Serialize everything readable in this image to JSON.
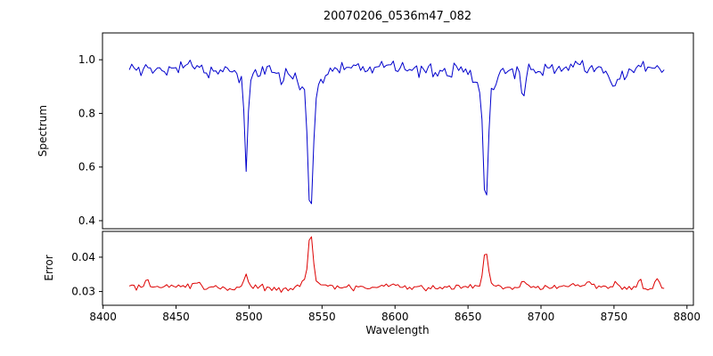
{
  "x_axis": {
    "label": "Wavelength",
    "lim": [
      8399.6,
      8804.4
    ],
    "ticks": [
      8400,
      8450,
      8500,
      8550,
      8600,
      8650,
      8700,
      8750,
      8800
    ],
    "data_range": [
      8418,
      8786
    ],
    "step": 1.6
  },
  "chart_data": [
    {
      "id": "spectrum",
      "type": "line",
      "title": "20070206_0536m47_082",
      "ylabel": "Spectrum",
      "color": "#0000cc",
      "ylim": [
        0.37,
        1.1
      ],
      "yticks": [
        {
          "value": 0.4,
          "label": "0.4"
        },
        {
          "value": 0.6,
          "label": "0.6"
        },
        {
          "value": 0.8,
          "label": "0.8"
        },
        {
          "value": 1.0,
          "label": "1.0"
        }
      ],
      "baseline": 0.963,
      "noise": 0.014,
      "slow_wave": 0.008,
      "fast_wave": 0.006,
      "sign": -1,
      "seed": 19,
      "clamp": [
        0.395,
        1.055
      ],
      "spike_prob": 0,
      "spike_amp": 0,
      "features": [
        {
          "center": 8498.0,
          "depth": 0.34,
          "sigma": 1.1,
          "wing_sigma": 4,
          "wing_depth": 0.035
        },
        {
          "center": 8542.1,
          "depth": 0.46,
          "sigma": 1.7,
          "wing_sigma": 7,
          "wing_depth": 0.09
        },
        {
          "center": 8662.1,
          "depth": 0.43,
          "sigma": 1.5,
          "wing_sigma": 6,
          "wing_depth": 0.075
        },
        {
          "center": 8688.0,
          "depth": 0.1,
          "sigma": 1.3
        },
        {
          "center": 8750.0,
          "depth": 0.05,
          "sigma": 4.0
        }
      ]
    },
    {
      "id": "error",
      "type": "line",
      "ylabel": "Error",
      "color": "#dd0000",
      "ylim": [
        0.026,
        0.0475
      ],
      "yticks": [
        {
          "value": 0.03,
          "label": "0.03"
        },
        {
          "value": 0.04,
          "label": "0.04"
        }
      ],
      "baseline": 0.0312,
      "noise": 0.00045,
      "slow_wave": 0.0003,
      "fast_wave": 0.0002,
      "sign": 1,
      "seed": 101,
      "clamp": [
        0.0295,
        0.047
      ],
      "spike_prob": 0.05,
      "spike_amp": 0.0012,
      "features": [
        {
          "center": 8430.0,
          "depth": 0.0032,
          "sigma": 1.1
        },
        {
          "center": 8466.0,
          "depth": 0.0018,
          "sigma": 1.1
        },
        {
          "center": 8498.0,
          "depth": 0.0042,
          "sigma": 1.5
        },
        {
          "center": 8542.1,
          "depth": 0.0135,
          "sigma": 1.6,
          "wing_sigma": 5,
          "wing_depth": 0.002
        },
        {
          "center": 8662.1,
          "depth": 0.01,
          "sigma": 1.5,
          "wing_sigma": 5,
          "wing_depth": 0.0015
        },
        {
          "center": 8688.0,
          "depth": 0.0013,
          "sigma": 1.2
        },
        {
          "center": 8735.0,
          "depth": 0.0008,
          "sigma": 2.0
        },
        {
          "center": 8752.0,
          "depth": 0.0016,
          "sigma": 1.5
        },
        {
          "center": 8768.0,
          "depth": 0.0026,
          "sigma": 1.3
        },
        {
          "center": 8779.0,
          "depth": 0.003,
          "sigma": 1.2
        }
      ]
    }
  ]
}
